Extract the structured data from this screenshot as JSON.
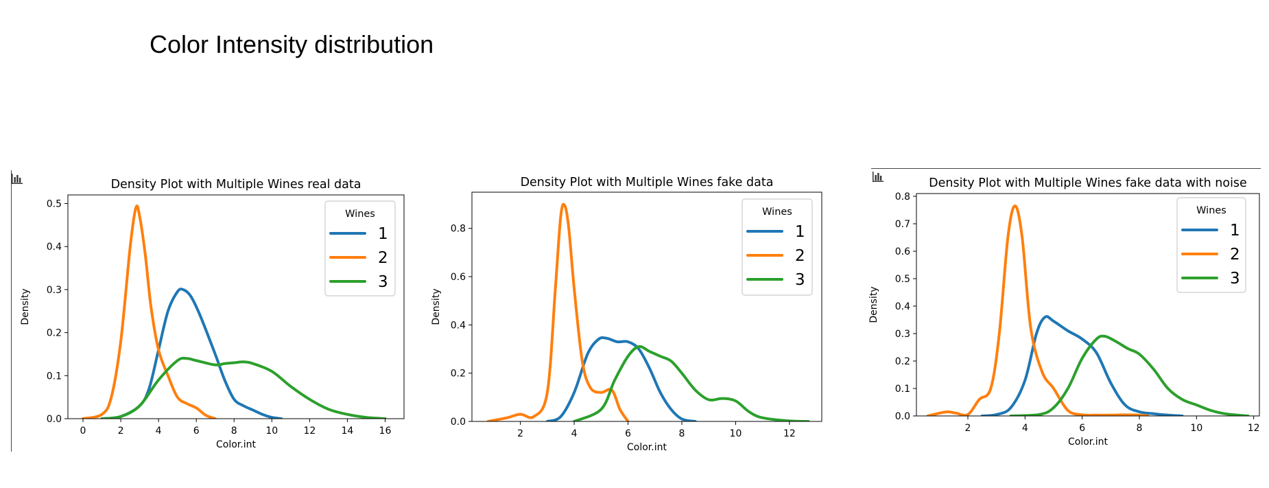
{
  "page": {
    "title": "Color Intensity distribution"
  },
  "colors": {
    "series": [
      "#1f77b4",
      "#ff7f0e",
      "#2ca02c"
    ]
  },
  "icons": {
    "chart_icon": "bar-chart-icon"
  },
  "chart_data": [
    {
      "type": "line",
      "title": "Density Plot with Multiple Wines real data",
      "xlabel": "Color.int",
      "ylabel": "Density",
      "xlim": [
        -0.8,
        17.0
      ],
      "ylim": [
        0,
        0.52
      ],
      "xticks": [
        0,
        2,
        4,
        6,
        8,
        10,
        12,
        14,
        16
      ],
      "yticks": [
        0.0,
        0.1,
        0.2,
        0.3,
        0.4,
        0.5
      ],
      "ytick_labels": [
        "0.0",
        "0.1",
        "0.2",
        "0.3",
        "0.4",
        "0.5"
      ],
      "grid": false,
      "legend": {
        "title": "Wines",
        "position": "top-right"
      },
      "series": [
        {
          "name": "1",
          "x": [
            1.0,
            2.0,
            3.0,
            3.5,
            4.0,
            4.5,
            5.0,
            5.3,
            5.7,
            6.2,
            7.0,
            7.5,
            8.0,
            8.5,
            9.0,
            9.5,
            10.0,
            10.5
          ],
          "y": [
            0.0,
            0.005,
            0.03,
            0.07,
            0.16,
            0.25,
            0.295,
            0.3,
            0.285,
            0.24,
            0.15,
            0.09,
            0.045,
            0.03,
            0.02,
            0.01,
            0.003,
            0.0
          ]
        },
        {
          "name": "2",
          "x": [
            0.0,
            1.0,
            1.5,
            2.0,
            2.5,
            2.8,
            3.0,
            3.3,
            3.6,
            4.0,
            4.5,
            5.0,
            5.5,
            6.0,
            6.5,
            7.0
          ],
          "y": [
            0.0,
            0.01,
            0.05,
            0.18,
            0.4,
            0.49,
            0.47,
            0.38,
            0.26,
            0.16,
            0.1,
            0.05,
            0.035,
            0.025,
            0.008,
            0.0
          ]
        },
        {
          "name": "3",
          "x": [
            1.0,
            2.0,
            3.0,
            4.0,
            5.0,
            5.5,
            6.0,
            7.0,
            7.5,
            8.0,
            8.5,
            9.0,
            10.0,
            11.0,
            12.0,
            13.0,
            14.0,
            15.0,
            16.0
          ],
          "y": [
            0.0,
            0.005,
            0.03,
            0.09,
            0.135,
            0.14,
            0.135,
            0.125,
            0.128,
            0.13,
            0.132,
            0.128,
            0.11,
            0.075,
            0.045,
            0.022,
            0.01,
            0.003,
            0.0
          ]
        }
      ]
    },
    {
      "type": "line",
      "title": "Density Plot with Multiple Wines fake data",
      "xlabel": "Color.int",
      "ylabel": "Density",
      "xlim": [
        0.2,
        13.2
      ],
      "ylim": [
        0,
        0.95
      ],
      "xticks": [
        2,
        4,
        6,
        8,
        10,
        12
      ],
      "yticks": [
        0.0,
        0.2,
        0.4,
        0.6,
        0.8
      ],
      "ytick_labels": [
        "0.0",
        "0.2",
        "0.4",
        "0.6",
        "0.8"
      ],
      "grid": false,
      "legend": {
        "title": "Wines",
        "position": "top-right"
      },
      "series": [
        {
          "name": "1",
          "x": [
            3.0,
            3.5,
            4.0,
            4.5,
            4.9,
            5.2,
            5.6,
            6.0,
            6.4,
            6.8,
            7.2,
            7.6,
            8.0,
            8.5
          ],
          "y": [
            0.0,
            0.02,
            0.12,
            0.28,
            0.34,
            0.345,
            0.33,
            0.33,
            0.3,
            0.22,
            0.12,
            0.05,
            0.01,
            0.0
          ]
        },
        {
          "name": "2",
          "x": [
            0.8,
            1.5,
            2.0,
            2.5,
            3.0,
            3.3,
            3.5,
            3.65,
            3.8,
            4.0,
            4.3,
            4.6,
            5.0,
            5.4,
            5.7,
            6.0
          ],
          "y": [
            0.0,
            0.015,
            0.03,
            0.02,
            0.12,
            0.55,
            0.85,
            0.895,
            0.8,
            0.55,
            0.25,
            0.14,
            0.12,
            0.13,
            0.05,
            0.0
          ]
        },
        {
          "name": "3",
          "x": [
            4.0,
            5.0,
            5.5,
            6.0,
            6.4,
            6.8,
            7.2,
            7.6,
            8.0,
            8.5,
            9.0,
            9.5,
            10.0,
            10.5,
            11.0,
            12.0,
            12.7
          ],
          "y": [
            0.0,
            0.05,
            0.17,
            0.27,
            0.31,
            0.29,
            0.27,
            0.25,
            0.2,
            0.13,
            0.09,
            0.095,
            0.085,
            0.04,
            0.015,
            0.002,
            0.0
          ]
        }
      ]
    },
    {
      "type": "line",
      "title": "Density Plot with Multiple Wines fake data with noise",
      "xlabel": "Color.int",
      "ylabel": "Density",
      "xlim": [
        0.2,
        12.2
      ],
      "ylim": [
        0,
        0.81
      ],
      "xticks": [
        2,
        4,
        6,
        8,
        10,
        12
      ],
      "yticks": [
        0.0,
        0.1,
        0.2,
        0.3,
        0.4,
        0.5,
        0.6,
        0.7,
        0.8
      ],
      "ytick_labels": [
        "0.0",
        "0.1",
        "0.2",
        "0.3",
        "0.4",
        "0.5",
        "0.6",
        "0.7",
        "0.8"
      ],
      "grid": false,
      "legend": {
        "title": "Wines",
        "position": "top-right"
      },
      "series": [
        {
          "name": "1",
          "x": [
            2.5,
            3.0,
            3.5,
            4.0,
            4.4,
            4.7,
            5.0,
            5.5,
            6.0,
            6.5,
            7.0,
            7.5,
            8.0,
            8.5,
            9.0,
            9.5
          ],
          "y": [
            0.0,
            0.005,
            0.03,
            0.13,
            0.3,
            0.36,
            0.345,
            0.31,
            0.28,
            0.23,
            0.12,
            0.04,
            0.015,
            0.008,
            0.003,
            0.0
          ]
        },
        {
          "name": "2",
          "x": [
            0.6,
            1.0,
            1.3,
            1.6,
            2.0,
            2.4,
            2.8,
            3.1,
            3.4,
            3.65,
            3.9,
            4.2,
            4.6,
            5.0,
            5.5,
            6.0,
            6.5,
            7.0,
            7.5,
            8.0,
            8.3
          ],
          "y": [
            0.0,
            0.01,
            0.015,
            0.01,
            0.005,
            0.06,
            0.1,
            0.3,
            0.65,
            0.765,
            0.65,
            0.32,
            0.16,
            0.1,
            0.02,
            0.004,
            0.003,
            0.003,
            0.004,
            0.003,
            0.0
          ]
        },
        {
          "name": "3",
          "x": [
            3.5,
            4.5,
            5.0,
            5.5,
            6.0,
            6.5,
            6.8,
            7.2,
            7.6,
            8.0,
            8.5,
            9.0,
            9.5,
            10.0,
            10.5,
            11.0,
            11.8
          ],
          "y": [
            0.0,
            0.005,
            0.03,
            0.1,
            0.21,
            0.28,
            0.29,
            0.27,
            0.245,
            0.225,
            0.17,
            0.1,
            0.06,
            0.04,
            0.02,
            0.008,
            0.0
          ]
        }
      ]
    }
  ]
}
